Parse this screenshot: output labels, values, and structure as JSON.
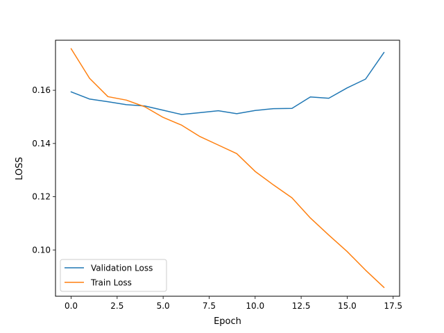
{
  "chart_data": {
    "type": "line",
    "title": "",
    "xlabel": "Epoch",
    "ylabel": "LOSS",
    "xlim": [
      -0.85,
      17.85
    ],
    "ylim": [
      0.0826,
      0.1788
    ],
    "xticks": [
      0.0,
      2.5,
      5.0,
      7.5,
      10.0,
      12.5,
      15.0,
      17.5
    ],
    "xtick_labels": [
      "0.0",
      "2.5",
      "5.0",
      "7.5",
      "10.0",
      "12.5",
      "15.0",
      "17.5"
    ],
    "yticks": [
      0.1,
      0.12,
      0.14,
      0.16
    ],
    "ytick_labels": [
      "0.10",
      "0.12",
      "0.14",
      "0.16"
    ],
    "grid": false,
    "legend_position": "lower-left",
    "x": [
      0,
      1,
      2,
      3,
      4,
      5,
      6,
      7,
      8,
      9,
      10,
      11,
      12,
      13,
      14,
      15,
      16,
      17
    ],
    "series": [
      {
        "name": "Validation Loss",
        "color": "#1f77b4",
        "values": [
          0.1594,
          0.1567,
          0.1557,
          0.1546,
          0.1541,
          0.1525,
          0.1509,
          0.1516,
          0.1523,
          0.1512,
          0.1524,
          0.1531,
          0.1532,
          0.1575,
          0.157,
          0.1609,
          0.1642,
          0.1742
        ]
      },
      {
        "name": "Train Loss",
        "color": "#ff7f0e",
        "values": [
          0.1756,
          0.1645,
          0.1576,
          0.1563,
          0.1538,
          0.1498,
          0.1469,
          0.1426,
          0.1394,
          0.1362,
          0.1295,
          0.1244,
          0.1196,
          0.112,
          0.1056,
          0.0994,
          0.0924,
          0.0859
        ]
      }
    ]
  }
}
